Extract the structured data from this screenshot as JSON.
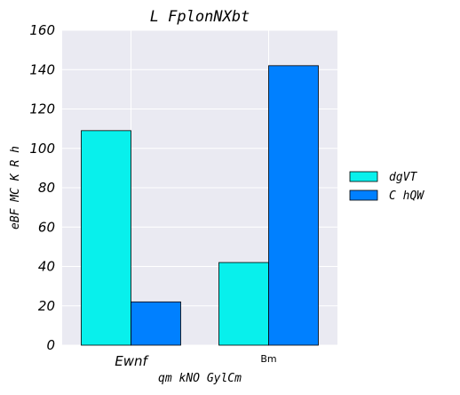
{
  "chart_data": {
    "type": "bar",
    "title": "L FplonNXbt",
    "xlabel": "qm kNO GylCm",
    "ylabel": "eBF MC K R h",
    "categories": [
      "Ewnf",
      "Bm"
    ],
    "series": [
      {
        "name": "dgVT",
        "values": [
          109,
          42
        ],
        "color": "#08f0ec"
      },
      {
        "name": "C hQW",
        "values": [
          22,
          142
        ],
        "color": "#0080ff"
      }
    ],
    "ylim": [
      0,
      160
    ],
    "yticks": [
      0,
      20,
      40,
      60,
      80,
      100,
      120,
      140,
      160
    ],
    "grid": true,
    "legend_position": "right",
    "background_color": "#eaeaf2"
  }
}
